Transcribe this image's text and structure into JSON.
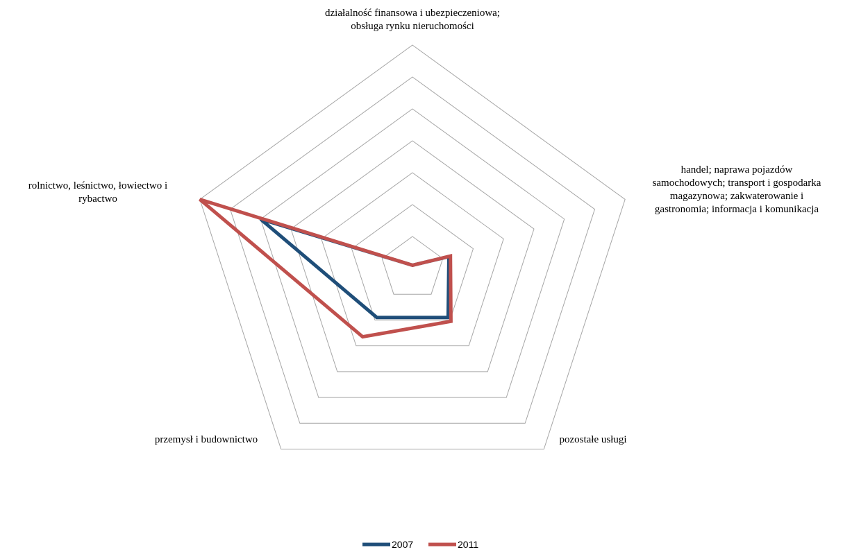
{
  "chart_data": {
    "type": "radar",
    "title": "",
    "categories": [
      "działalność finansowa i ubezpieczeniowa; obsługa rynku nieruchomości",
      "handel; naprawa pojazdów samochodowych; transport i gospodarka magazynowa; zakwaterowanie i gastronomia; informacja i komunikacja",
      "pozostałe usługi",
      "przemysł i budownictwo",
      "rolnictwo, leśnictwo, łowiectwo i rybactwo"
    ],
    "category_lines": [
      [
        "działalność finansowa i ubezpieczeniowa;",
        "obsługa rynku nieruchomości"
      ],
      [
        "handel; naprawa pojazdów",
        "samochodowych; transport i gospodarka",
        "magazynowa; zakwaterowanie i",
        "gastronomia; informacja i komunikacja"
      ],
      [
        "pozostałe usługi"
      ],
      [
        "przemysł i budownictwo"
      ],
      [
        "rolnictwo, leśnictwo, łowiectwo i",
        "rybactwo"
      ]
    ],
    "rings": 7,
    "rmax": 7,
    "series": [
      {
        "name": "2007",
        "color": "#1f4e79",
        "values": [
          0.1,
          1.2,
          1.9,
          1.9,
          5.0
        ]
      },
      {
        "name": "2011",
        "color": "#c0504d",
        "values": [
          0.1,
          1.25,
          2.05,
          2.65,
          7.0
        ]
      }
    ],
    "legend_position": "bottom",
    "grid": true
  }
}
